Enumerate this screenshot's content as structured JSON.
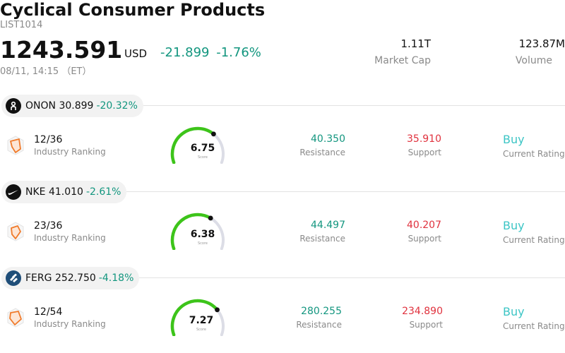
{
  "header": {
    "title": "Cyclical Consumer Products",
    "ticker": "LIST1014",
    "price": "1243.591",
    "currency": "USD",
    "change": "-21.899",
    "change_pct": "-1.76%",
    "timestamp": "08/11, 14:15 （ET）"
  },
  "stats": [
    {
      "value": "1.11T",
      "label": "Market Cap"
    },
    {
      "value": "123.87M",
      "label": "Volume"
    }
  ],
  "stocks": [
    {
      "symbol": "ONON",
      "price": "30.899",
      "change_pct": "-20.32%",
      "logo": "on-running-icon",
      "rank": "12/36",
      "rank_label": "Industry Ranking",
      "score": "6.75",
      "score_value": 6.75,
      "score_label": "Score",
      "resistance": "40.350",
      "resistance_label": "Resistance",
      "support": "35.910",
      "support_label": "Support",
      "rating": "Buy",
      "rating_label": "Current Rating"
    },
    {
      "symbol": "NKE",
      "price": "41.010",
      "change_pct": "-2.61%",
      "logo": "nike-swoosh-icon",
      "rank": "23/36",
      "rank_label": "Industry Ranking",
      "score": "6.38",
      "score_value": 6.38,
      "score_label": "Score",
      "resistance": "44.497",
      "resistance_label": "Resistance",
      "support": "40.207",
      "support_label": "Support",
      "rating": "Buy",
      "rating_label": "Current Rating"
    },
    {
      "symbol": "FERG",
      "price": "252.750",
      "change_pct": "-4.18%",
      "logo": "ferguson-icon",
      "rank": "12/54",
      "rank_label": "Industry Ranking",
      "score": "7.27",
      "score_value": 7.27,
      "score_label": "Score",
      "resistance": "280.255",
      "resistance_label": "Resistance",
      "support": "234.890",
      "support_label": "Support",
      "rating": "Buy",
      "rating_label": "Current Rating"
    }
  ],
  "colors": {
    "positive": "#13967f",
    "negative": "#e0323e",
    "rating": "#3cc5c5",
    "gauge_fill": "#3dc41a",
    "gauge_track": "#dcdde6",
    "rank_icon": "#f07a2a"
  }
}
